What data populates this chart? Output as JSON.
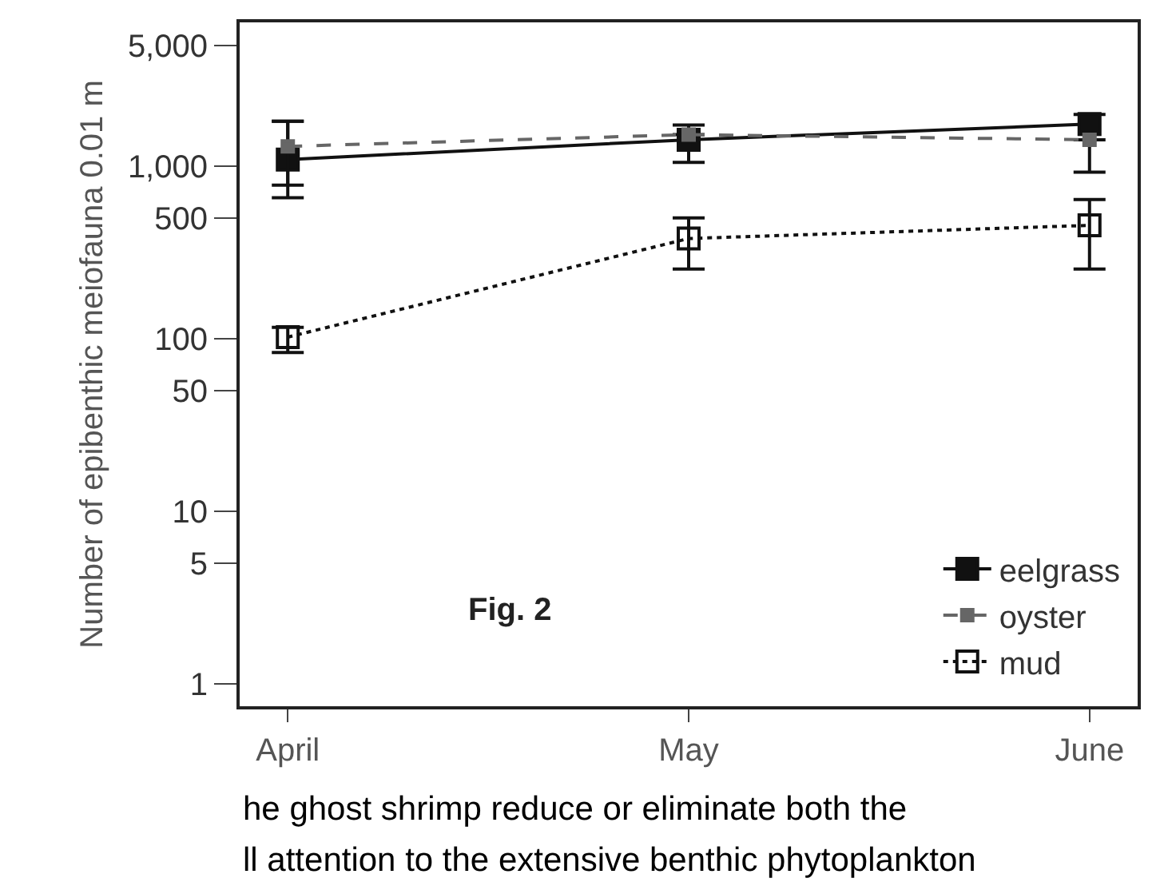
{
  "chart_data": {
    "type": "line",
    "ylabel": "Number of epibenthic meiofauna 0.01 m",
    "categories": [
      "April",
      "May",
      "June"
    ],
    "log": true,
    "ylim": [
      0.74,
      6800
    ],
    "yticks": [
      1,
      5,
      10,
      50,
      100,
      500,
      {
        "value": 1000,
        "label": "1,000"
      },
      {
        "value": 5000,
        "label": "5,000"
      }
    ],
    "marker": "square",
    "legend": "bottom right",
    "series": [
      {
        "name": "eelgrass",
        "color": "#111111",
        "line_style": "solid",
        "values": [
          1090,
          1420,
          1750
        ],
        "errors": [
          [
            775,
            1820
          ],
          [
            1050,
            1730
          ],
          [
            920,
            1990
          ]
        ]
      },
      {
        "name": "oyster",
        "color": "#666666",
        "line_style": "dashed",
        "values": [
          1300,
          1520,
          1420
        ],
        "errors": [
          [
            655,
            1820
          ],
          null,
          null
        ]
      },
      {
        "name": "mud",
        "color": "#111111",
        "line_style": "dotted",
        "marker": "square-open",
        "values": [
          102,
          380,
          453
        ],
        "errors": [
          [
            83,
            116
          ],
          [
            253,
            500
          ],
          [
            253,
            640
          ]
        ]
      }
    ],
    "annotations": [
      "Fig. 2",
      "he ghost shrimp reduce or eliminate both the",
      "ll attention to the extensive benthic phytoplankton"
    ]
  }
}
